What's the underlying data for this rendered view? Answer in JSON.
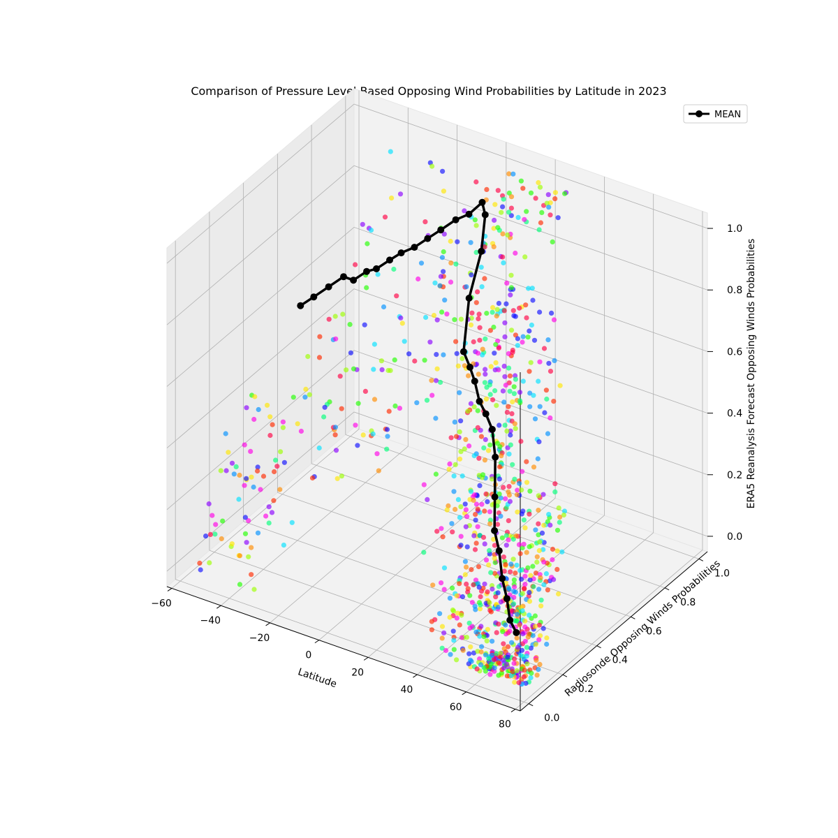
{
  "chart_data": {
    "type": "scatter",
    "projection": "3d",
    "title": "Comparison of Pressure Level Based Opposing Wind Probabilities by Latitude in 2023",
    "xlabel": "Latitude",
    "ylabel": "Radiosonde Opposing Winds Probabilities",
    "zlabel": "ERA5 Reanalysis Forecast Opposing Winds Probabilities",
    "xlim": [
      -62,
      82
    ],
    "ylim": [
      -0.05,
      1.05
    ],
    "zlim": [
      -0.05,
      1.05
    ],
    "xticks": [
      "−60",
      "−40",
      "−20",
      "0",
      "20",
      "40",
      "60",
      "80"
    ],
    "yticks": [
      "0.0",
      "0.2",
      "0.4",
      "0.6",
      "0.8",
      "1.0"
    ],
    "zticks": [
      "0.0",
      "0.2",
      "0.4",
      "0.6",
      "0.8",
      "1.0"
    ],
    "grid": true,
    "legend": {
      "placement": "top-right",
      "entries": [
        "MEAN"
      ]
    },
    "mean_series": {
      "name": "MEAN",
      "color": "#000000",
      "latitude": [
        -54,
        -50,
        -46,
        -42,
        -38,
        -34,
        -30,
        -26,
        -22,
        -18,
        -14,
        -10,
        -6,
        -2,
        2,
        6,
        10,
        14,
        18,
        22,
        26,
        30,
        34,
        38,
        42,
        46,
        50,
        54,
        58,
        62,
        66,
        70
      ],
      "radiosonde": [
        0.62,
        0.64,
        0.67,
        0.7,
        0.7,
        0.72,
        0.72,
        0.74,
        0.75,
        0.77,
        0.79,
        0.81,
        0.84,
        0.86,
        0.88,
        0.84,
        0.76,
        0.63,
        0.54,
        0.52,
        0.49,
        0.46,
        0.44,
        0.42,
        0.38,
        0.32,
        0.26,
        0.23,
        0.19,
        0.16,
        0.12,
        0.1
      ],
      "era5": [
        0.57,
        0.6,
        0.63,
        0.66,
        0.66,
        0.69,
        0.71,
        0.74,
        0.77,
        0.79,
        0.82,
        0.85,
        0.88,
        0.9,
        0.94,
        0.93,
        0.86,
        0.78,
        0.66,
        0.63,
        0.61,
        0.57,
        0.55,
        0.52,
        0.46,
        0.37,
        0.3,
        0.26,
        0.2,
        0.16,
        0.12,
        0.1
      ]
    },
    "point_cloud": {
      "note_colors": "colored by pressure level",
      "colors": [
        "#ff0044",
        "#ff2a00",
        "#ff8c00",
        "#ffe600",
        "#9dff00",
        "#22ff00",
        "#00ff7a",
        "#00e1ff",
        "#0090ff",
        "#1010ff",
        "#8a00ff",
        "#ff00e6"
      ],
      "clusters": [
        {
          "lat_range": [
            -58,
            -30
          ],
          "radiosonde_range": [
            0.0,
            0.35
          ],
          "era5_range": [
            0.0,
            0.4
          ],
          "count": 70
        },
        {
          "lat_range": [
            -40,
            0
          ],
          "radiosonde_range": [
            0.3,
            0.9
          ],
          "era5_range": [
            0.2,
            0.85
          ],
          "count": 110
        },
        {
          "lat_range": [
            0,
            30
          ],
          "radiosonde_range": [
            0.55,
            1.0
          ],
          "era5_range": [
            0.55,
            1.0
          ],
          "count": 160
        },
        {
          "lat_range": [
            20,
            50
          ],
          "radiosonde_range": [
            0.25,
            0.7
          ],
          "era5_range": [
            0.25,
            0.75
          ],
          "count": 200
        },
        {
          "lat_range": [
            40,
            75
          ],
          "radiosonde_range": [
            0.0,
            0.35
          ],
          "era5_range": [
            0.0,
            0.4
          ],
          "count": 330
        },
        {
          "lat_range": [
            60,
            80
          ],
          "radiosonde_range": [
            0.0,
            0.15
          ],
          "era5_range": [
            0.0,
            0.15
          ],
          "count": 200
        }
      ]
    }
  }
}
